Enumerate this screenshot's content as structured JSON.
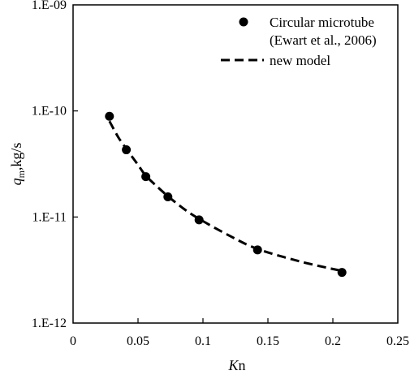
{
  "chart_data": {
    "type": "scatter",
    "xlabel": {
      "italic": "K",
      "rest": "n"
    },
    "ylabel": {
      "italic": "q",
      "sub": "m",
      "rest": ",kg/s"
    },
    "xlim": [
      0,
      0.25
    ],
    "ylim": [
      1e-12,
      1e-09
    ],
    "yscale": "log",
    "grid": false,
    "legend_position": "top-right",
    "x_ticks": [
      0,
      0.05,
      0.1,
      0.15,
      0.2,
      0.25
    ],
    "x_tick_labels": [
      "0",
      "0.05",
      "0.1",
      "0.15",
      "0.2",
      "0.25"
    ],
    "y_ticks": [
      1e-12,
      1e-11,
      1e-10,
      1e-09
    ],
    "y_tick_labels": [
      "1.E-12",
      "1.E-11",
      "1.E-10",
      "1.E-09"
    ],
    "series": [
      {
        "name": "Circular microtube",
        "name_line2": "(Ewart et al., 2006)",
        "style": "markers",
        "marker": "filled-circle",
        "color": "#000000",
        "x": [
          0.028,
          0.041,
          0.056,
          0.073,
          0.097,
          0.142,
          0.207
        ],
        "y": [
          8.9e-11,
          4.3e-11,
          2.4e-11,
          1.55e-11,
          9.4e-12,
          4.9e-12,
          3e-12
        ]
      },
      {
        "name": "new model",
        "style": "dashed-line",
        "color": "#000000",
        "x": [
          0.028,
          0.035,
          0.041,
          0.05,
          0.056,
          0.065,
          0.073,
          0.085,
          0.097,
          0.12,
          0.142,
          0.175,
          0.207
        ],
        "y": [
          8e-11,
          5.6e-11,
          4.4e-11,
          3.1e-11,
          2.45e-11,
          1.92e-11,
          1.57e-11,
          1.2e-11,
          9.6e-12,
          6.7e-12,
          5e-12,
          3.8e-12,
          3.1e-12
        ]
      }
    ]
  }
}
